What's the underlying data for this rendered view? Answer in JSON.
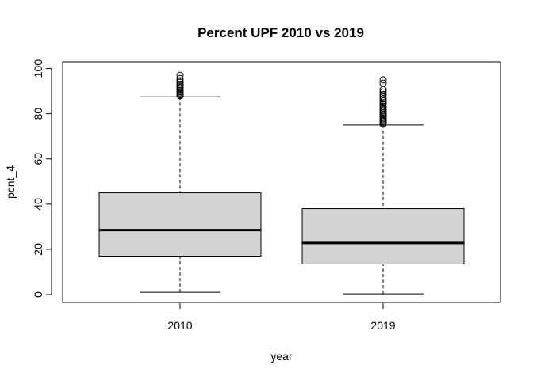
{
  "chart_data": {
    "type": "boxplot",
    "title": "Percent UPF 2010 vs 2019",
    "xlabel": "year",
    "ylabel": "pcnt_4",
    "ylim": [
      -3.5,
      103
    ],
    "yticks": [
      0,
      20,
      40,
      60,
      80,
      100
    ],
    "grid": false,
    "colors": {
      "box_fill": "#d3d3d3",
      "stroke": "#000000"
    },
    "boxes": [
      {
        "label": "2010",
        "min": 1.0,
        "q1": 17.0,
        "median": 28.5,
        "q3": 45.0,
        "max": 87.5,
        "outliers": [
          88.0,
          88.4,
          88.8,
          89.3,
          89.8,
          90.3,
          91.0,
          91.6,
          92.3,
          93.0,
          93.8,
          94.6,
          95.5,
          97.0
        ]
      },
      {
        "label": "2019",
        "min": 0.3,
        "q1": 13.5,
        "median": 22.8,
        "q3": 38.0,
        "max": 75.0,
        "outliers": [
          75.4,
          75.9,
          76.4,
          76.9,
          77.4,
          78.0,
          78.6,
          79.2,
          79.8,
          80.5,
          81.2,
          81.9,
          82.6,
          83.3,
          84.1,
          84.9,
          85.7,
          86.6,
          87.5,
          88.5,
          89.6,
          90.7,
          93.5,
          95.0
        ]
      }
    ]
  }
}
